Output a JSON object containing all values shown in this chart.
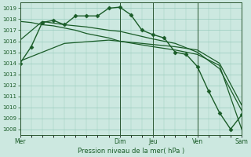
{
  "bg_color": "#cce8e0",
  "grid_color": "#99ccbe",
  "line_color": "#1a5c28",
  "xlabel": "Pression niveau de la mer( hPa )",
  "ylim": [
    1007.5,
    1019.5
  ],
  "yticks": [
    1008,
    1009,
    1010,
    1011,
    1012,
    1013,
    1014,
    1015,
    1016,
    1017,
    1018,
    1019
  ],
  "xtick_labels": [
    "Mer",
    "Dim",
    "Jeu",
    "Ven",
    "Sam"
  ],
  "xtick_positions": [
    0,
    9,
    12,
    16,
    20
  ],
  "vlines": [
    0,
    9,
    12,
    16,
    20
  ],
  "series": [
    {
      "x": [
        0,
        1,
        2,
        3,
        4,
        5,
        6,
        7,
        8,
        9,
        10,
        11,
        12,
        13,
        14,
        15,
        16,
        17,
        18,
        19,
        20
      ],
      "y": [
        1014.0,
        1015.5,
        1017.7,
        1017.9,
        1017.5,
        1018.3,
        1018.3,
        1018.3,
        1019.0,
        1019.1,
        1018.4,
        1017.0,
        1016.6,
        1016.3,
        1015.0,
        1014.8,
        1013.7,
        1011.5,
        1009.5,
        1008.0,
        1009.3
      ],
      "marker": "D",
      "markersize": 2.5,
      "linewidth": 1.0
    },
    {
      "x": [
        0,
        4,
        8,
        9,
        12,
        14,
        16,
        18,
        20
      ],
      "y": [
        1014.2,
        1015.8,
        1016.1,
        1016.0,
        1015.7,
        1015.5,
        1015.2,
        1014.0,
        1010.2
      ],
      "marker": null,
      "linewidth": 0.9
    },
    {
      "x": [
        0,
        2,
        4,
        6,
        8,
        9,
        12,
        14,
        16,
        18,
        20
      ],
      "y": [
        1016.1,
        1017.8,
        1017.5,
        1017.3,
        1017.0,
        1016.9,
        1016.2,
        1015.8,
        1015.0,
        1013.5,
        1009.7
      ],
      "marker": null,
      "linewidth": 0.9
    },
    {
      "x": [
        0,
        1,
        2,
        3,
        4,
        5,
        6,
        7,
        8,
        9,
        12,
        14,
        16,
        18,
        20
      ],
      "y": [
        1017.8,
        1017.7,
        1017.5,
        1017.4,
        1017.2,
        1017.0,
        1016.7,
        1016.5,
        1016.3,
        1016.0,
        1015.5,
        1015.2,
        1014.8,
        1013.8,
        1008.0
      ],
      "marker": null,
      "linewidth": 0.9
    }
  ]
}
